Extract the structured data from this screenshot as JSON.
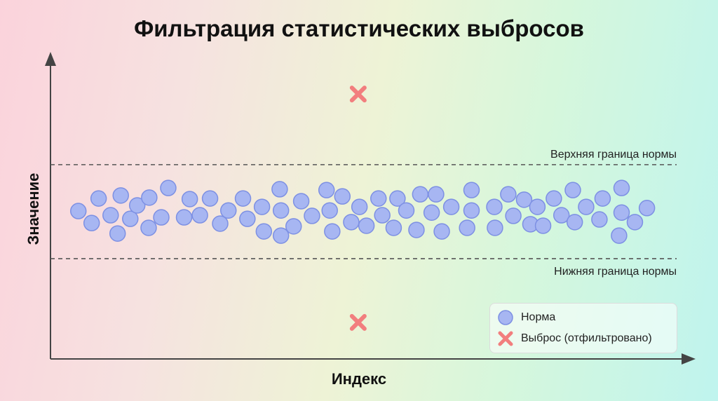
{
  "chart_data": {
    "type": "scatter",
    "title": "Фильтрация статистических выбросов",
    "xlabel": "Индекс",
    "ylabel": "Значение",
    "xlim": [
      0,
      100
    ],
    "ylim": [
      0,
      100
    ],
    "grid": false,
    "legend_position": "bottom-right",
    "colors": {
      "normal_fill": "#a7b6f2",
      "normal_stroke": "#7d90e3",
      "outlier": "#f27e7e",
      "bound_line": "#555555"
    },
    "bounds": [
      {
        "label": "Верхняя граница нормы",
        "value": 64.9
      },
      {
        "label": "Нижняя граница нормы",
        "value": 33.5
      }
    ],
    "series": [
      {
        "name": "Норма",
        "marker": "circle",
        "x": [
          4.4,
          6.5,
          7.6,
          9.5,
          10.6,
          11.1,
          12.6,
          13.7,
          15.5,
          15.6,
          17.5,
          18.6,
          21.1,
          22.0,
          23.6,
          25.2,
          26.8,
          28.1,
          30.4,
          31.1,
          33.4,
          33.7,
          36.2,
          36.4,
          36.4,
          38.4,
          39.6,
          41.3,
          43.6,
          44.1,
          44.5,
          46.1,
          47.5,
          48.8,
          49.9,
          51.8,
          52.4,
          54.2,
          54.8,
          56.2,
          57.8,
          58.4,
          60.2,
          60.9,
          61.8,
          63.3,
          65.8,
          66.5,
          66.5,
          70.1,
          70.2,
          72.3,
          73.1,
          74.8,
          75.8,
          76.9,
          77.8,
          79.5,
          80.7,
          82.5,
          82.8,
          84.6,
          86.7,
          87.2,
          89.8,
          90.2,
          90.2,
          92.3,
          94.2
        ],
        "y": [
          49.4,
          45.4,
          53.6,
          48.0,
          41.9,
          54.6,
          46.8,
          51.3,
          43.8,
          53.9,
          47.3,
          57.1,
          47.3,
          53.4,
          48.0,
          53.6,
          45.2,
          49.6,
          53.6,
          46.8,
          50.8,
          42.6,
          56.7,
          49.6,
          41.2,
          44.3,
          52.7,
          47.8,
          56.4,
          49.6,
          42.6,
          54.3,
          45.7,
          50.8,
          44.5,
          53.6,
          48.0,
          43.8,
          53.6,
          49.6,
          43.1,
          55.0,
          48.9,
          55.0,
          42.6,
          50.8,
          43.8,
          56.4,
          49.6,
          50.8,
          43.8,
          55.0,
          47.8,
          53.2,
          45.0,
          50.8,
          44.5,
          53.6,
          48.0,
          56.4,
          45.7,
          50.8,
          46.6,
          53.6,
          41.2,
          57.1,
          48.9,
          45.7,
          50.4
        ]
      },
      {
        "name": "Выброс (отфильтровано)",
        "marker": "x",
        "x": [
          48.6,
          48.6
        ],
        "y": [
          88.5,
          12.2
        ]
      }
    ]
  }
}
